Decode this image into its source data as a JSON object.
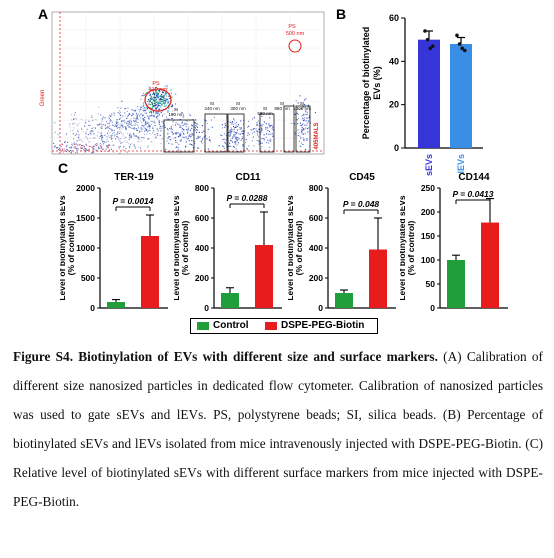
{
  "panels": {
    "a": "A",
    "b": "B",
    "c": "C"
  },
  "panel_a": {
    "y_label": "Green",
    "x_label": "405MALS",
    "gates": [
      {
        "name": "PS",
        "size": "110 nm"
      },
      {
        "name": "PS",
        "size": "500 nm"
      },
      {
        "name": "SI",
        "size": "180 nm"
      },
      {
        "name": "SI",
        "size": "240 nm"
      },
      {
        "name": "SI",
        "size": "300 nm"
      },
      {
        "name": "SI",
        "size": "500 nm"
      },
      {
        "name": "SI",
        "size": "880 nm"
      },
      {
        "name": "SI",
        "size": "1300 nm"
      }
    ],
    "accent_color": "#e02020"
  },
  "chart_data": [
    {
      "type": "bar",
      "panel": "B",
      "categories": [
        "sEVs",
        "lEVs"
      ],
      "values": [
        50,
        48
      ],
      "errors": [
        4,
        3
      ],
      "points": [
        [
          54,
          50,
          46,
          47
        ],
        [
          52,
          48,
          46,
          45
        ]
      ],
      "colors": [
        "#3636d8",
        "#3a8ee6"
      ],
      "ylabel": "Percentage of biotinylated EVs (%)",
      "ylim": [
        0,
        60
      ],
      "yticks": [
        "0",
        "20",
        "40",
        "60"
      ]
    },
    {
      "type": "bar",
      "panel": "C",
      "title": "TER-119",
      "categories": [
        "Control",
        "DSPE-PEG-Biotin"
      ],
      "values": [
        100,
        1200
      ],
      "errors": [
        40,
        350
      ],
      "ylabel": "Level of biotinylated sEVs (% of control)",
      "ylim": [
        0,
        2000
      ],
      "yticks": [
        "0",
        "500",
        "1000",
        "1500",
        "2000"
      ],
      "pvalue": "P = 0.0014"
    },
    {
      "type": "bar",
      "panel": "C",
      "title": "CD11",
      "categories": [
        "Control",
        "DSPE-PEG-Biotin"
      ],
      "values": [
        100,
        420
      ],
      "errors": [
        35,
        220
      ],
      "ylabel": "Level of biotinylated sEVs (% of control)",
      "ylim": [
        0,
        800
      ],
      "yticks": [
        "0",
        "200",
        "400",
        "600",
        "800"
      ],
      "pvalue": "P = 0.0288"
    },
    {
      "type": "bar",
      "panel": "C",
      "title": "CD45",
      "categories": [
        "Control",
        "DSPE-PEG-Biotin"
      ],
      "values": [
        100,
        390
      ],
      "errors": [
        20,
        210
      ],
      "ylabel": "Level of biotinylated sEVs (% of control)",
      "ylim": [
        0,
        800
      ],
      "yticks": [
        "0",
        "200",
        "400",
        "600",
        "800"
      ],
      "pvalue": "P = 0.048"
    },
    {
      "type": "bar",
      "panel": "C",
      "title": "CD144",
      "categories": [
        "Control",
        "DSPE-PEG-Biotin"
      ],
      "values": [
        100,
        178
      ],
      "errors": [
        10,
        50
      ],
      "ylabel": "Level of biotinylated sEVs (% of control)",
      "ylim": [
        0,
        250
      ],
      "yticks": [
        "0",
        "50",
        "100",
        "150",
        "200",
        "250"
      ],
      "pvalue": "P = 0.0413"
    }
  ],
  "legend": {
    "control_label": "Control",
    "control_color": "#1f9e3a",
    "treatment_label": "DSPE-PEG-Biotin",
    "treatment_color": "#e81c1c"
  },
  "caption": {
    "title": "Figure S4. Biotinylation of EVs with different size and surface markers.",
    "body": " (A) Calibration of different size nanosized particles in dedicated flow cytometer. Calibration of nanosized particles was used to gate sEVs and lEVs. PS, polystyrene beads; SI, silica beads. (B) Percentage of biotinylated sEVs and lEVs isolated from mice intravenously injected with DSPE-PEG-Biotin. (C) Relative level of biotinylated sEVs with different surface markers from mice injected with DSPE-PEG-Biotin."
  }
}
